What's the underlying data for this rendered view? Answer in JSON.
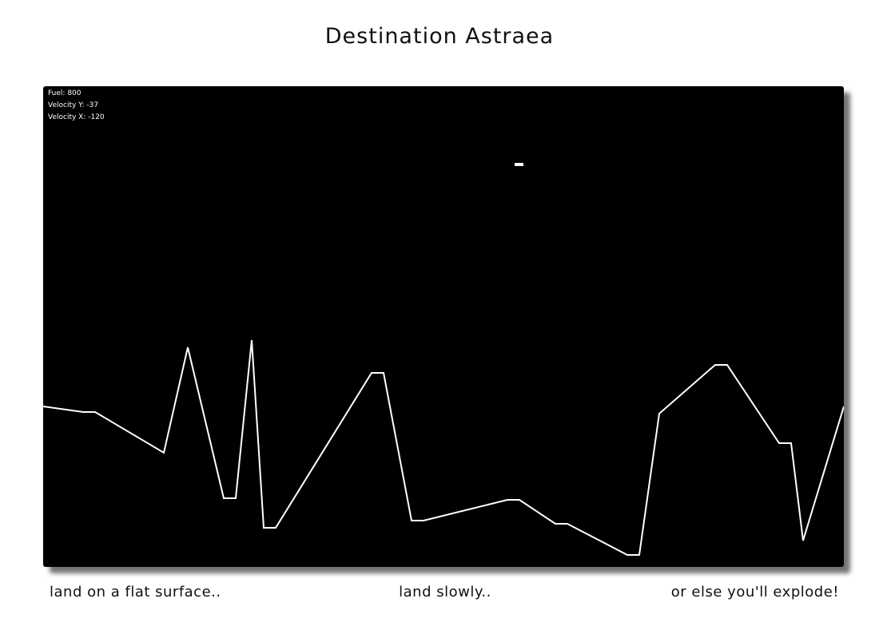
{
  "title": "Destination Astraea",
  "hud": {
    "fuel": "Fuel: 800",
    "velocity_y": "Velocity Y: -37",
    "velocity_x": "Velocity X: -120"
  },
  "captions": {
    "left": "land on a flat surface..",
    "center": "land slowly..",
    "right": "or else you'll explode!"
  },
  "colors": {
    "background": "#000000",
    "terrain": "#ffffff",
    "lander": "#ffffff"
  }
}
